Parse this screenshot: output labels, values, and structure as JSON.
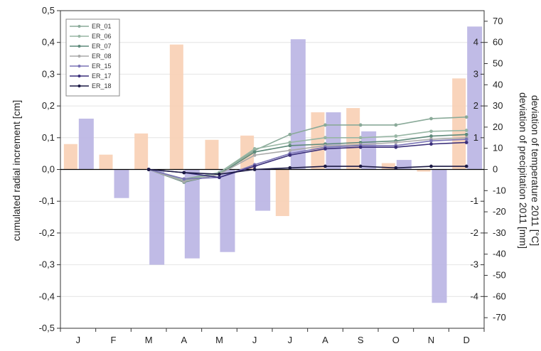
{
  "chart_data": {
    "type": "bar+line",
    "title": "",
    "categories": [
      "J",
      "F",
      "M",
      "A",
      "M",
      "J",
      "J",
      "A",
      "S",
      "O",
      "N",
      "D"
    ],
    "left_axis": {
      "label": "cumulated radial increment [cm]",
      "ylim": [
        -0.5,
        0.5
      ],
      "ticks": [
        "-0,5",
        "-0,4",
        "-0,3",
        "-0,2",
        "-0,1",
        "0,0",
        "0,1",
        "0,2",
        "0,3",
        "0,4",
        "0,5"
      ]
    },
    "right_axis_precip": {
      "label": "deviation of precipitation 2011 [mm]",
      "ylim": [
        -75,
        75
      ],
      "ticks": [
        "-70",
        "-60",
        "-50",
        "-40",
        "-30",
        "-20",
        "-10",
        "0",
        "10",
        "20",
        "30",
        "40",
        "50",
        "60",
        "70"
      ]
    },
    "right_axis_temp": {
      "label": "deviation of temperature 2011 [°C]",
      "ylim": [
        -5,
        5
      ],
      "ticks": [
        "-4",
        "-3",
        "-2",
        "-1",
        "1",
        "2",
        "3",
        "4"
      ]
    },
    "temperature_bars": [
      1.6,
      -0.9,
      -3.0,
      -2.8,
      -2.6,
      -1.3,
      4.1,
      1.8,
      1.2,
      0.3,
      -4.2,
      4.5
    ],
    "precipitation_bars": [
      12,
      7,
      17,
      59,
      14,
      16,
      -22,
      27,
      29,
      3,
      -1,
      43
    ],
    "series": [
      {
        "name": "ER_01",
        "color": "#8aaa99",
        "values": [
          null,
          null,
          0,
          -0.03,
          -0.01,
          0.06,
          0.11,
          0.14,
          0.14,
          0.14,
          0.16,
          0.165
        ]
      },
      {
        "name": "ER_06",
        "color": "#97b6a4",
        "values": [
          null,
          null,
          0,
          -0.035,
          -0.01,
          0.065,
          0.085,
          0.1,
          0.1,
          0.105,
          0.12,
          0.123
        ]
      },
      {
        "name": "ER_07",
        "color": "#5e8a7a",
        "values": [
          null,
          null,
          0,
          -0.04,
          -0.015,
          0.055,
          0.075,
          0.08,
          0.085,
          0.09,
          0.105,
          0.11
        ]
      },
      {
        "name": "ER_08",
        "color": "#aaaaaa",
        "values": [
          null,
          null,
          0,
          -0.038,
          -0.015,
          0.045,
          0.06,
          0.075,
          0.078,
          0.085,
          0.095,
          0.1
        ]
      },
      {
        "name": "ER_15",
        "color": "#7a73b5",
        "values": [
          null,
          null,
          0,
          -0.03,
          -0.025,
          0.015,
          0.05,
          0.07,
          0.075,
          0.075,
          0.09,
          0.095
        ]
      },
      {
        "name": "ER_17",
        "color": "#3a2f7a",
        "values": [
          null,
          null,
          0,
          -0.01,
          -0.025,
          0.01,
          0.045,
          0.065,
          0.07,
          0.07,
          0.08,
          0.085
        ]
      },
      {
        "name": "ER_18",
        "color": "#1c1a45",
        "values": [
          null,
          null,
          0,
          -0.01,
          -0.015,
          0.0,
          0.005,
          0.01,
          0.01,
          0.005,
          0.01,
          0.01
        ]
      }
    ],
    "colors": {
      "temperature_bar": "#b9b4e3",
      "precipitation_bar": "#f8cfb4",
      "grid": "#e4e4e4",
      "axis": "#333333"
    },
    "grid": true,
    "legend_placement": "top-left"
  }
}
